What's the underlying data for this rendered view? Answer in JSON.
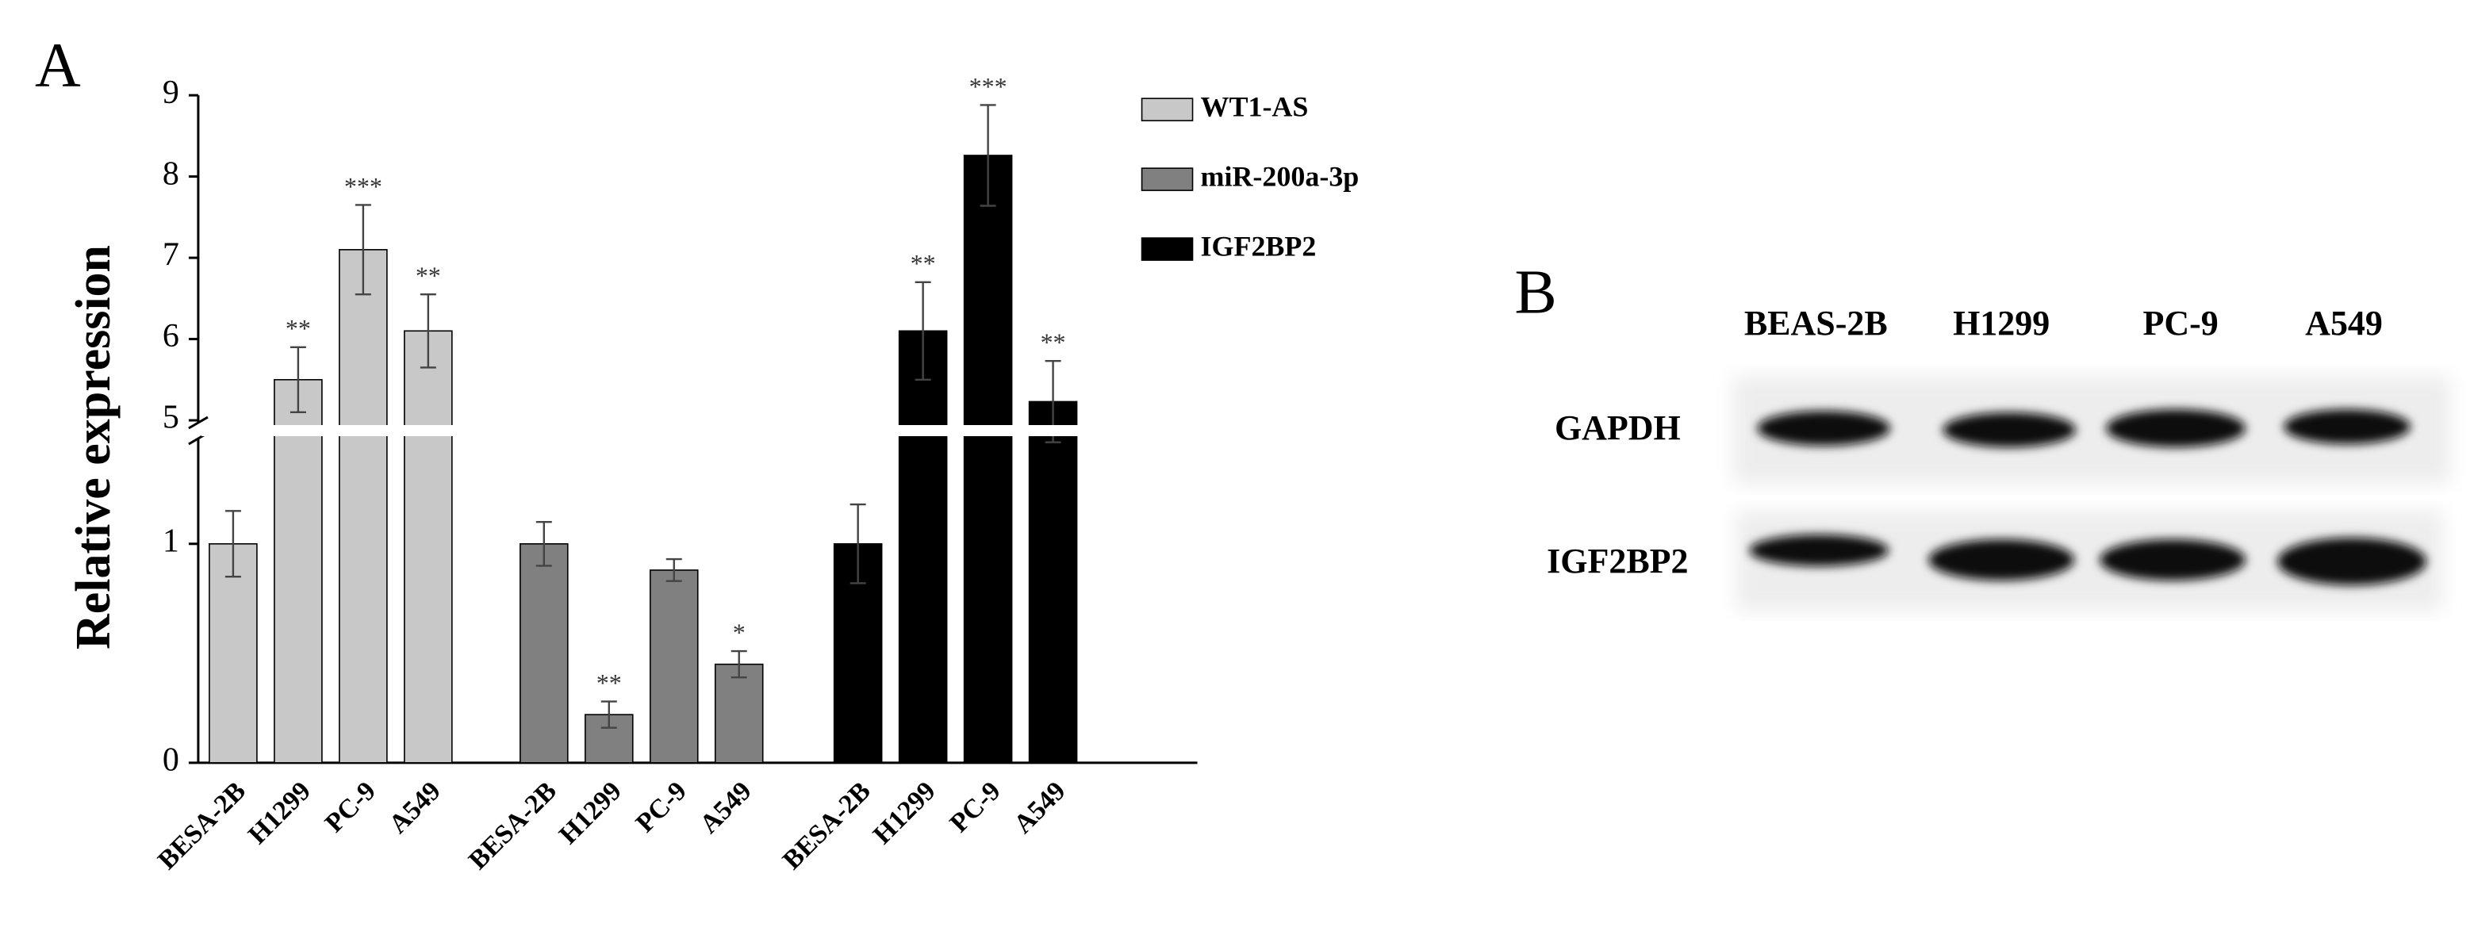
{
  "chart_data": {
    "type": "bar",
    "label": "A",
    "ylabel": "Relative expression",
    "categories": [
      "BESA-2B",
      "H1299",
      "PC-9",
      "A549"
    ],
    "series": [
      {
        "name": "WT1-AS",
        "color": "#c8c8c8",
        "values": [
          1.0,
          5.5,
          7.1,
          6.1
        ],
        "errors": [
          0.15,
          0.4,
          0.55,
          0.45
        ],
        "significance": [
          null,
          "**",
          "***",
          "**"
        ]
      },
      {
        "name": "miR-200a-3p",
        "color": "#808080",
        "values": [
          1.0,
          0.22,
          0.88,
          0.45
        ],
        "errors": [
          0.1,
          0.06,
          0.05,
          0.06
        ],
        "significance": [
          null,
          "**",
          null,
          "*"
        ]
      },
      {
        "name": "IGF2BP2",
        "color": "#000000",
        "values": [
          1.0,
          6.1,
          8.26,
          5.23
        ],
        "errors": [
          0.18,
          0.6,
          0.62,
          0.5
        ],
        "significance": [
          null,
          "**",
          "***",
          "**"
        ]
      }
    ],
    "ylim": [
      0,
      9
    ],
    "ybreak": [
      1.47,
      5
    ],
    "yticks": [
      0,
      1,
      5,
      6,
      7,
      8,
      9
    ],
    "legend": "top-right"
  },
  "blot": {
    "label": "B",
    "columns": [
      "BEAS-2B",
      "H1299",
      "PC-9",
      "A549"
    ],
    "rows": [
      "GAPDH",
      "IGF2BP2"
    ]
  }
}
